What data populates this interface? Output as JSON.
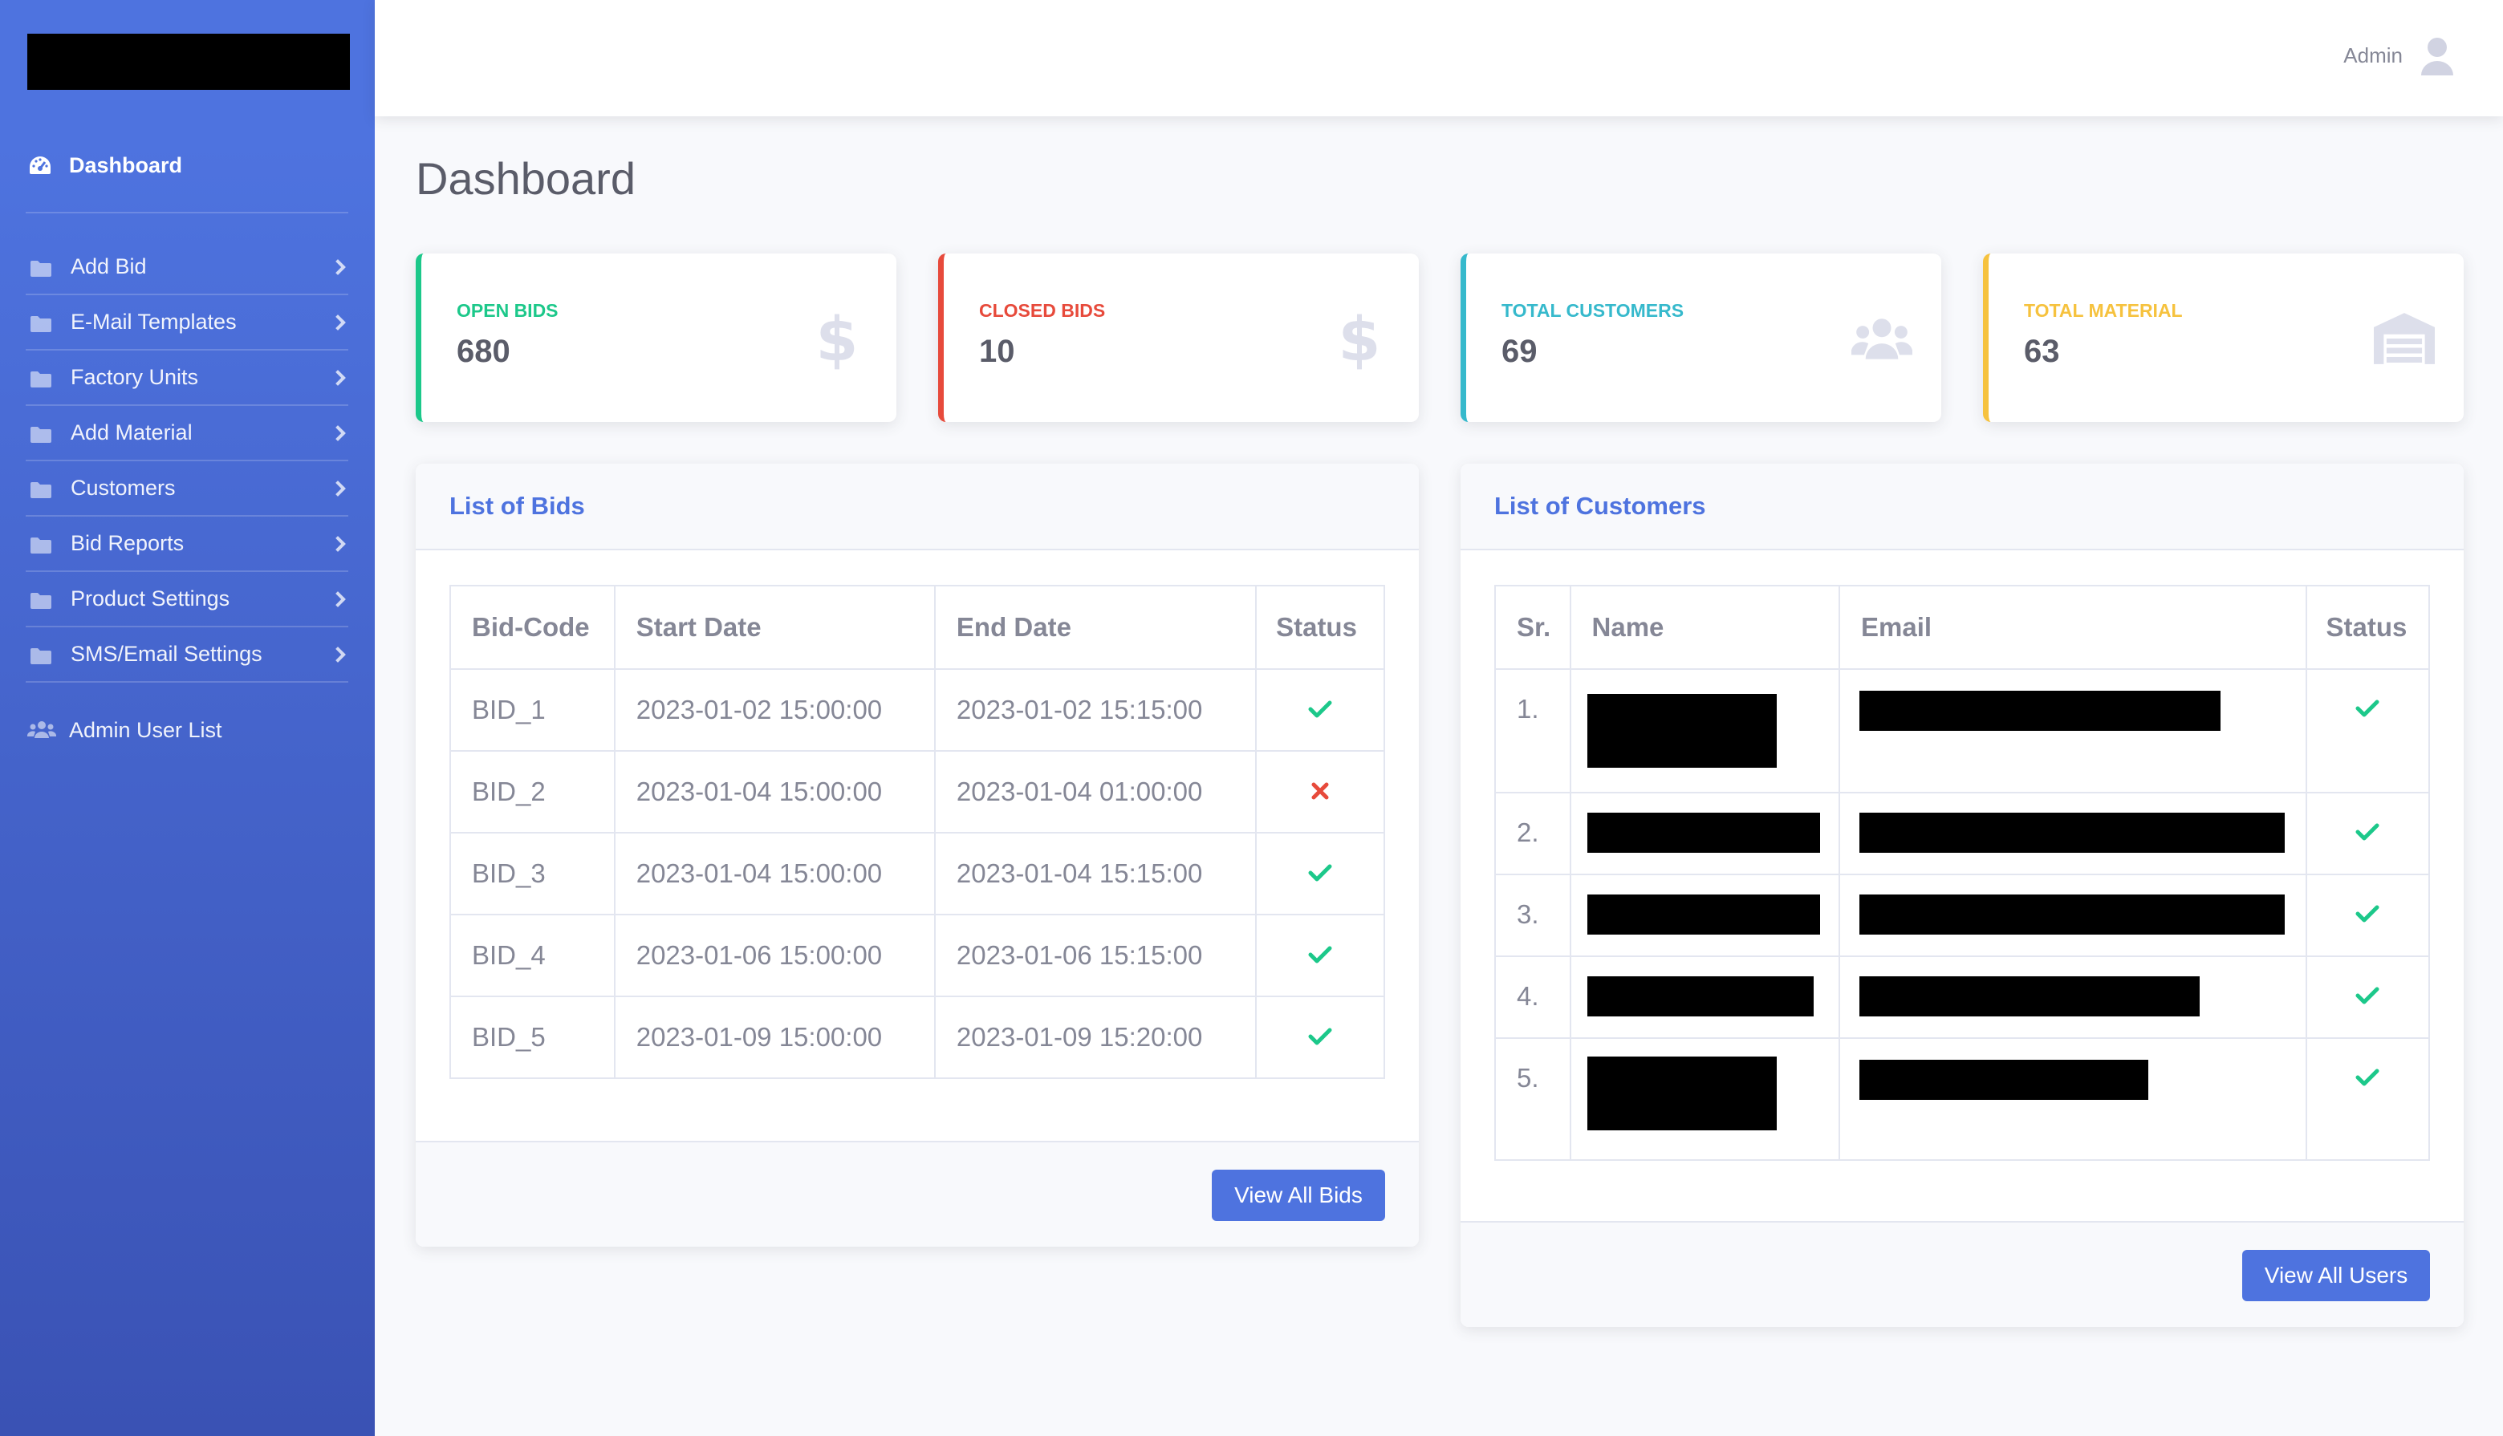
{
  "sidebar": {
    "dashboard_label": "Dashboard",
    "items": [
      {
        "label": "Add Bid"
      },
      {
        "label": "E-Mail Templates"
      },
      {
        "label": "Factory Units"
      },
      {
        "label": "Add Material"
      },
      {
        "label": "Customers"
      },
      {
        "label": "Bid Reports"
      },
      {
        "label": "Product Settings"
      },
      {
        "label": "SMS/Email Settings"
      }
    ],
    "admin_user_list_label": "Admin User List"
  },
  "topbar": {
    "user_name": "Admin"
  },
  "page_title": "Dashboard",
  "stats": [
    {
      "label": "OPEN BIDS",
      "value": "680",
      "color": "#1cc88a",
      "icon": "dollar-icon"
    },
    {
      "label": "CLOSED BIDS",
      "value": "10",
      "color": "#e74a3b",
      "icon": "dollar-icon"
    },
    {
      "label": "TOTAL CUSTOMERS",
      "value": "69",
      "color": "#36b9cc",
      "icon": "users-icon"
    },
    {
      "label": "TOTAL MATERIAL",
      "value": "63",
      "color": "#f6c23e",
      "icon": "warehouse-icon"
    }
  ],
  "bids_panel": {
    "title": "List of Bids",
    "columns": [
      "Bid-Code",
      "Start Date",
      "End Date",
      "Status"
    ],
    "rows": [
      {
        "code": "BID_1",
        "start": "2023-01-02 15:00:00",
        "end": "2023-01-02 15:15:00",
        "status": "check"
      },
      {
        "code": "BID_2",
        "start": "2023-01-04 15:00:00",
        "end": "2023-01-04 01:00:00",
        "status": "cross"
      },
      {
        "code": "BID_3",
        "start": "2023-01-04 15:00:00",
        "end": "2023-01-04 15:15:00",
        "status": "check"
      },
      {
        "code": "BID_4",
        "start": "2023-01-06 15:00:00",
        "end": "2023-01-06 15:15:00",
        "status": "check"
      },
      {
        "code": "BID_5",
        "start": "2023-01-09 15:00:00",
        "end": "2023-01-09 15:20:00",
        "status": "check"
      }
    ],
    "button_label": "View All Bids"
  },
  "customers_panel": {
    "title": "List of Customers",
    "columns": [
      "Sr.",
      "Name",
      "Email",
      "Status"
    ],
    "rows": [
      {
        "sr": "1.",
        "status": "check"
      },
      {
        "sr": "2.",
        "status": "check"
      },
      {
        "sr": "3.",
        "status": "check"
      },
      {
        "sr": "4.",
        "status": "check"
      },
      {
        "sr": "5.",
        "status": "check"
      }
    ],
    "button_label": "View All Users"
  },
  "colors": {
    "primary": "#4e73df",
    "success": "#1cc88a",
    "danger": "#e74a3b",
    "info": "#36b9cc",
    "warning": "#f6c23e"
  }
}
